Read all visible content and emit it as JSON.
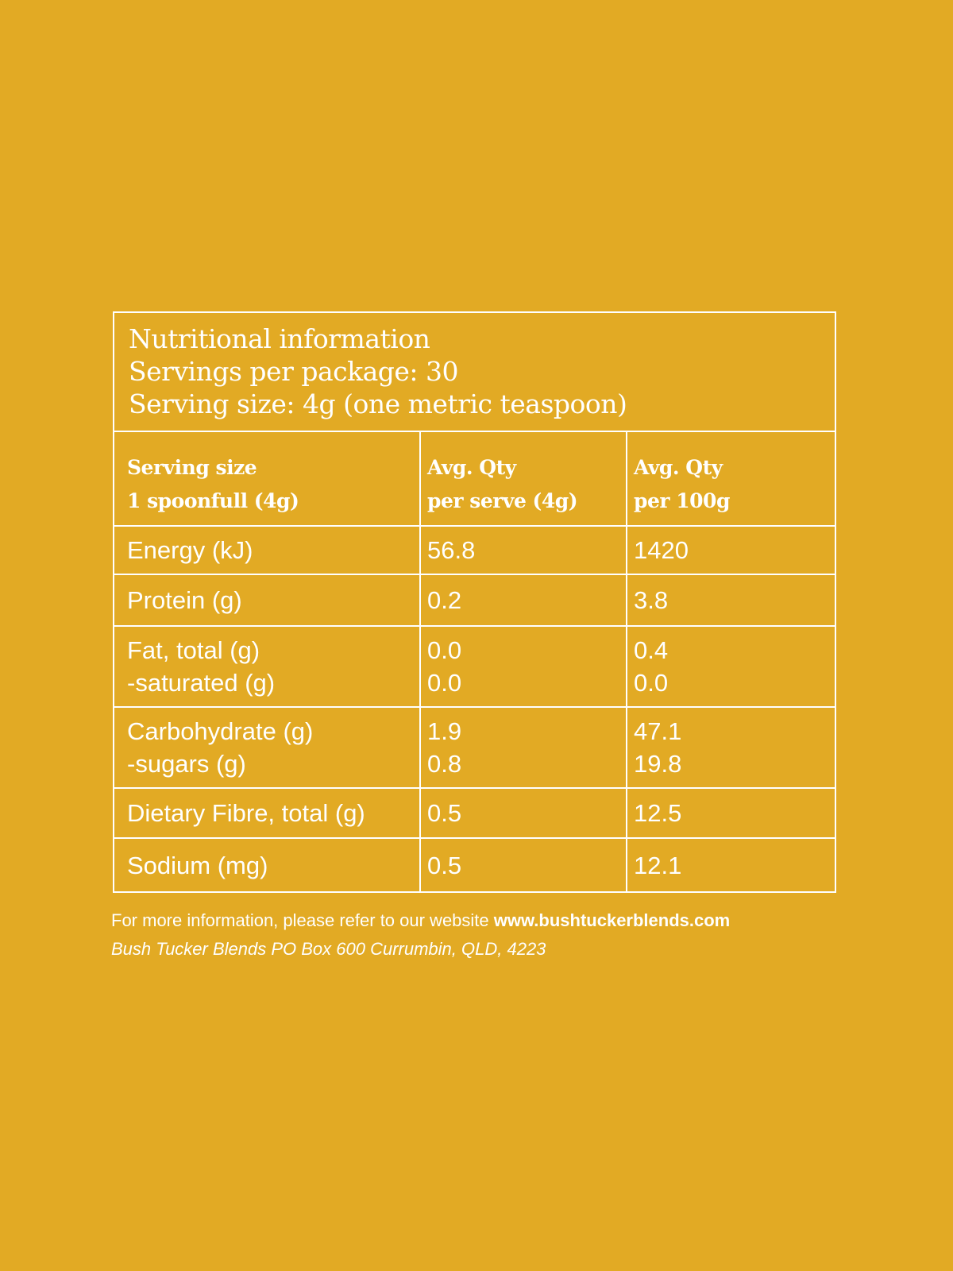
{
  "header": {
    "title": "Nutritional information",
    "servings_per_package": "Servings per package: 30",
    "serving_size": "Serving size: 4g (one metric teaspoon)"
  },
  "columns": [
    {
      "line1": "Serving size",
      "line2": "1 spoonfull (4g)"
    },
    {
      "line1": "Avg. Qty",
      "line2": "per serve (4g)"
    },
    {
      "line1": "Avg. Qty",
      "line2": "per 100g"
    }
  ],
  "rows": [
    {
      "label": [
        "Energy (kJ)"
      ],
      "per_serve": [
        "56.8"
      ],
      "per_100g": [
        "1420"
      ]
    },
    {
      "label": [
        "Protein (g)"
      ],
      "per_serve": [
        "0.2"
      ],
      "per_100g": [
        "3.8"
      ]
    },
    {
      "label": [
        "Fat, total (g)",
        "-saturated (g)"
      ],
      "per_serve": [
        "0.0",
        "0.0"
      ],
      "per_100g": [
        "0.4",
        "0.0"
      ]
    },
    {
      "label": [
        "Carbohydrate (g)",
        "-sugars (g)"
      ],
      "per_serve": [
        "1.9",
        "0.8"
      ],
      "per_100g": [
        "47.1",
        "19.8"
      ]
    },
    {
      "label": [
        "Dietary Fibre, total (g)"
      ],
      "per_serve": [
        "0.5"
      ],
      "per_100g": [
        "12.5"
      ]
    },
    {
      "label": [
        "Sodium (mg)"
      ],
      "per_serve": [
        "0.5"
      ],
      "per_100g": [
        "12.1"
      ]
    }
  ],
  "footer": {
    "info_text": "For more information, please refer to our website",
    "website": "www.bushtuckerblends.com",
    "address": "Bush Tucker Blends  PO Box 600 Currumbin, QLD, 4223"
  },
  "colors": {
    "background": "#e2aa24",
    "text": "#ffffff"
  }
}
